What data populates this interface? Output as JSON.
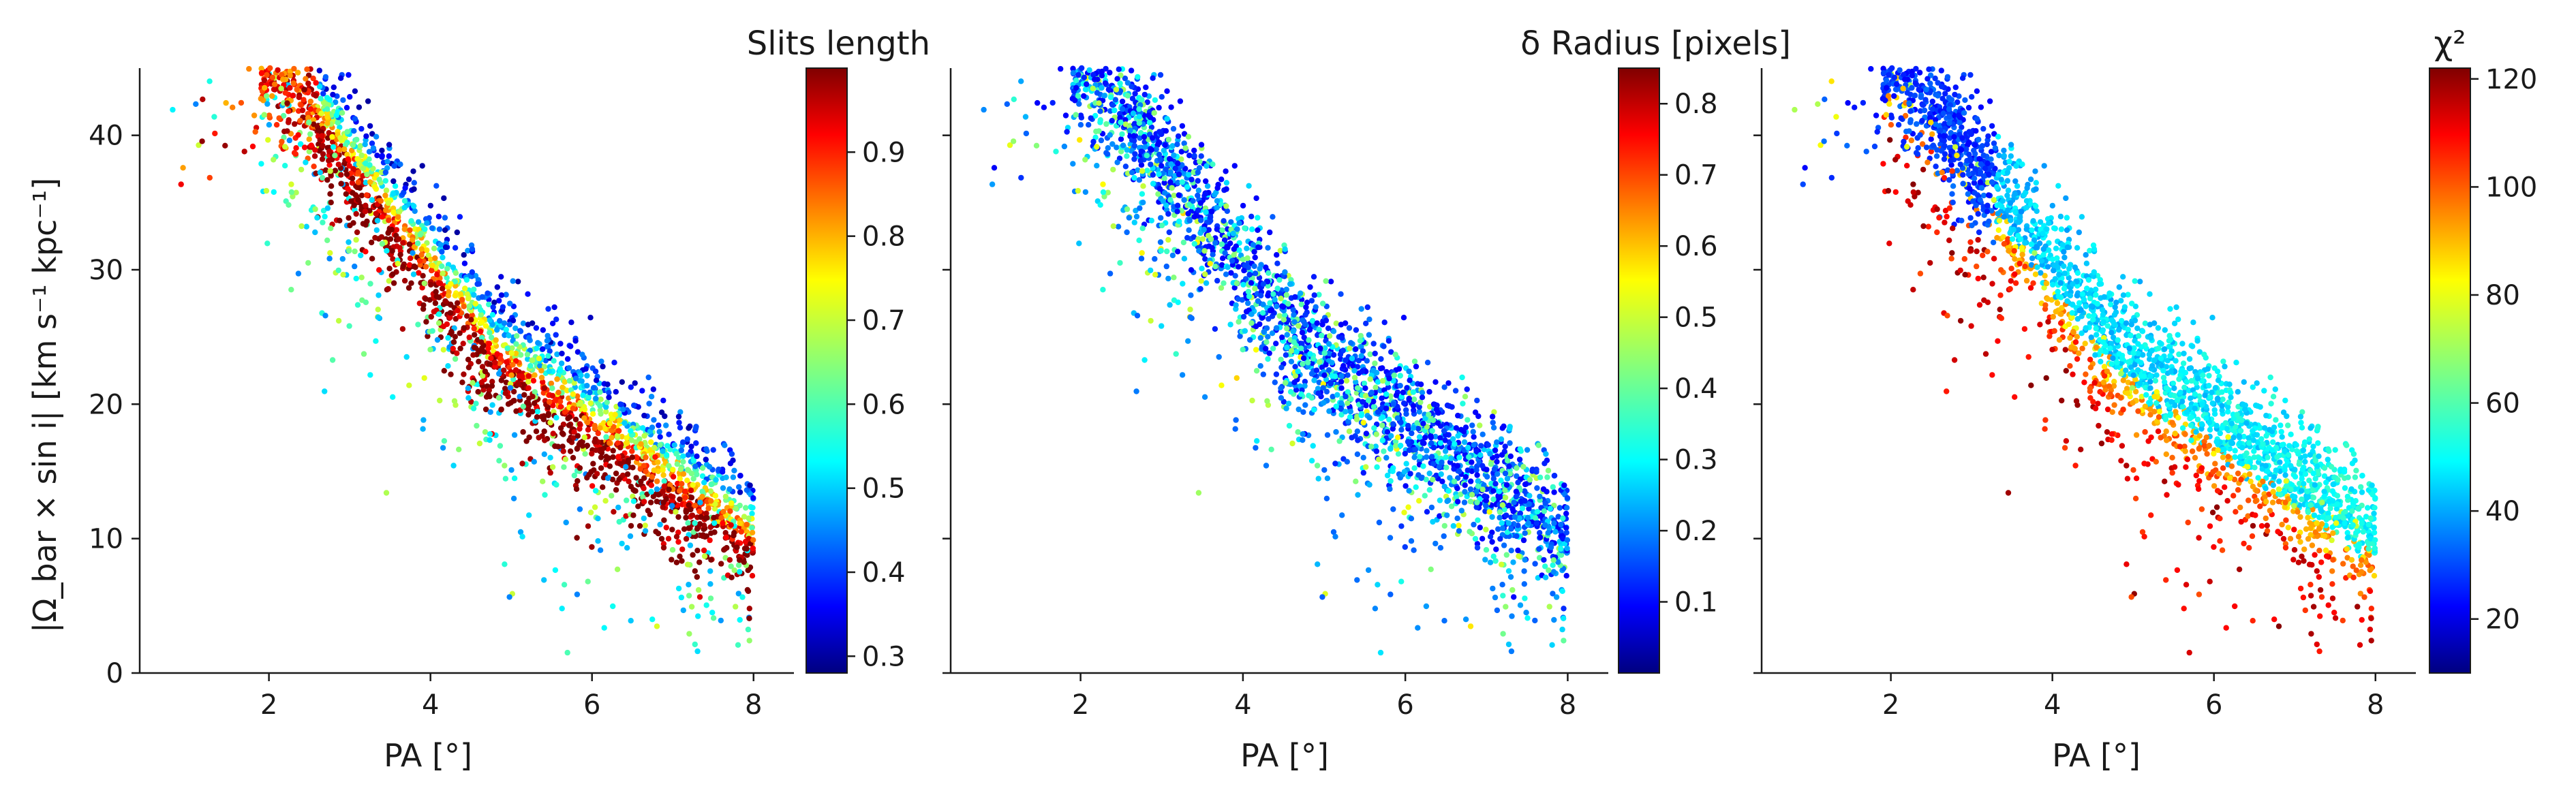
{
  "colors": {
    "jet": [
      "#000080",
      "#0000ff",
      "#0080ff",
      "#00ffff",
      "#80ff80",
      "#ffff00",
      "#ff8000",
      "#ff0000",
      "#800000"
    ],
    "axis": "#1a1a1a",
    "background": "#ffffff"
  },
  "chart_data": [
    {
      "type": "scatter",
      "xlabel": "PA [°]",
      "ylabel": "|Ω_bar × sin i|  [km s⁻¹ kpc⁻¹]",
      "xlim": [
        0.4,
        8.5
      ],
      "ylim": [
        0,
        45
      ],
      "xticks": [
        2,
        4,
        6,
        8
      ],
      "yticks": [
        0,
        10,
        20,
        30,
        40
      ],
      "grid": false,
      "colorbar": {
        "title": "Slits length",
        "range": [
          0.28,
          1.0
        ],
        "ticks": [
          0.3,
          0.4,
          0.5,
          0.6,
          0.7,
          0.8,
          0.9
        ],
        "cmap": "jet"
      },
      "color_pattern": "slits",
      "points": 2600,
      "description_of_trend": "Band of points from (PA≈2, 45) down to (PA≈8, 12); lower envelope (red, long slits) lies on the band, scattered outliers below are blue/cyan (short slits)."
    },
    {
      "type": "scatter",
      "xlabel": "PA [°]",
      "ylabel": "",
      "xlim": [
        0.4,
        8.5
      ],
      "ylim": [
        0,
        45
      ],
      "xticks": [
        2,
        4,
        6,
        8
      ],
      "yticks": [],
      "grid": false,
      "colorbar": {
        "title": "δ Radius [pixels]",
        "range": [
          0.0,
          0.85
        ],
        "ticks": [
          0.1,
          0.2,
          0.3,
          0.4,
          0.5,
          0.6,
          0.7,
          0.8
        ],
        "cmap": "jet"
      },
      "color_pattern": "radius",
      "points": 2600
    },
    {
      "type": "scatter",
      "xlabel": "PA [°]",
      "ylabel": "",
      "xlim": [
        0.4,
        8.5
      ],
      "ylim": [
        0,
        45
      ],
      "xticks": [
        2,
        4,
        6,
        8
      ],
      "yticks": [],
      "grid": false,
      "colorbar": {
        "title": "χ²",
        "range": [
          10,
          122
        ],
        "ticks": [
          20,
          40,
          60,
          80,
          100,
          120
        ],
        "cmap": "jet"
      },
      "color_pattern": "chi2",
      "points": 2600
    }
  ]
}
